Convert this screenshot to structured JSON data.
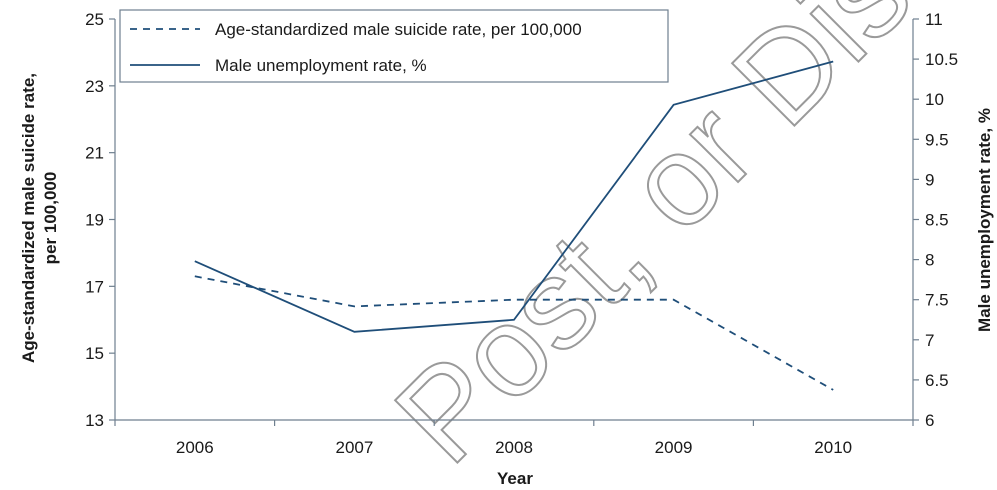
{
  "chart_data": {
    "type": "line",
    "categories": [
      "2006",
      "2007",
      "2008",
      "2009",
      "2010"
    ],
    "xlabel": "Year",
    "ylabel_left_lines": [
      "Age-standardized male suicide rate,",
      "per 100,000"
    ],
    "ylabel_right": "Male unemployment rate, %",
    "ylim_left": [
      13,
      25
    ],
    "yticks_left": [
      "13",
      "15",
      "17",
      "19",
      "21",
      "23",
      "25"
    ],
    "ylim_right": [
      6,
      11
    ],
    "yticks_right": [
      "6",
      "6.5",
      "7",
      "7.5",
      "8",
      "8.5",
      "9",
      "9.5",
      "10",
      "10.5",
      "11"
    ],
    "grid": false,
    "legend_position": "top-left",
    "series": [
      {
        "name": "Age-standardized male suicide rate, per 100,000",
        "axis": "left",
        "style": "dashed",
        "values": [
          17.3,
          16.4,
          16.6,
          16.6,
          13.9
        ]
      },
      {
        "name": "Male unemployment rate, %",
        "axis": "right",
        "style": "solid",
        "values": [
          7.98,
          7.1,
          7.25,
          9.93,
          10.47
        ]
      }
    ],
    "colors": {
      "line": "#1f4e79",
      "axis": "#6f7f8f",
      "text": "#1a1a1a"
    }
  },
  "watermark": {
    "text": "Post, or Distribute",
    "color": "#9a9a9a"
  }
}
